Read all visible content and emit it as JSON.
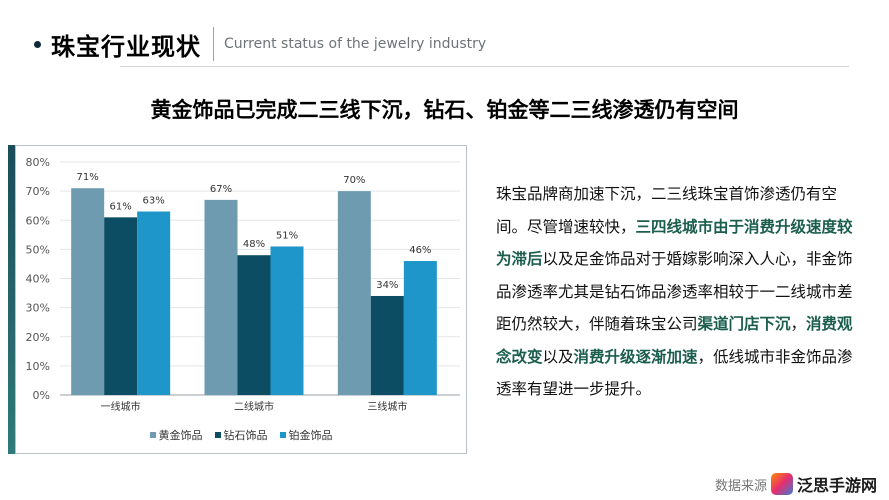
{
  "header": {
    "title": "珠宝行业现状",
    "subtitle": "Current status of the jewelry industry"
  },
  "headline": "黄金饰品已完成二三线下沉，钻石、铂金等二三线渗透仍有空间",
  "body": {
    "segments": [
      {
        "text": "珠宝品牌商加速下沉，二三线珠宝首饰渗透仍有空间。尽管增速较快，",
        "bold": false
      },
      {
        "text": "三四线城市由于消费升级速度较为滞后",
        "bold": true
      },
      {
        "text": "以及足金饰品对于婚嫁影响深入人心，非金饰品渗透率尤其是钻石饰品渗透率相较于一二线城市差距仍然较大，伴随着珠宝公司",
        "bold": false
      },
      {
        "text": "渠道门店下沉",
        "bold": true
      },
      {
        "text": "，",
        "bold": false
      },
      {
        "text": "消费观念改变",
        "bold": true
      },
      {
        "text": "以及",
        "bold": false
      },
      {
        "text": "消费升级逐渐加速",
        "bold": true
      },
      {
        "text": "，低线城市非金饰品渗透率有望进一步提升。",
        "bold": false
      }
    ]
  },
  "footer": {
    "source": "数据来源",
    "logo_text": "泛思手游网"
  },
  "chart_data": {
    "type": "bar",
    "categories": [
      "一线城市",
      "二线城市",
      "三线城市"
    ],
    "series": [
      {
        "name": "黄金饰品",
        "values": [
          71,
          67,
          70
        ],
        "labels": [
          "71%",
          "67%",
          "70%"
        ],
        "color": "#6e9bb0"
      },
      {
        "name": "钻石饰品",
        "values": [
          61,
          48,
          34
        ],
        "labels": [
          "61%",
          "48%",
          "34%"
        ],
        "color": "#0d4d63"
      },
      {
        "name": "铂金饰品",
        "values": [
          63,
          51,
          46
        ],
        "labels": [
          "63%",
          "51%",
          "46%"
        ],
        "color": "#1f96c9"
      }
    ],
    "yticks": [
      "0%",
      "10%",
      "20%",
      "30%",
      "40%",
      "50%",
      "60%",
      "70%",
      "80%"
    ],
    "ylim": [
      0,
      80
    ],
    "grid": true,
    "legend_position": "bottom"
  }
}
